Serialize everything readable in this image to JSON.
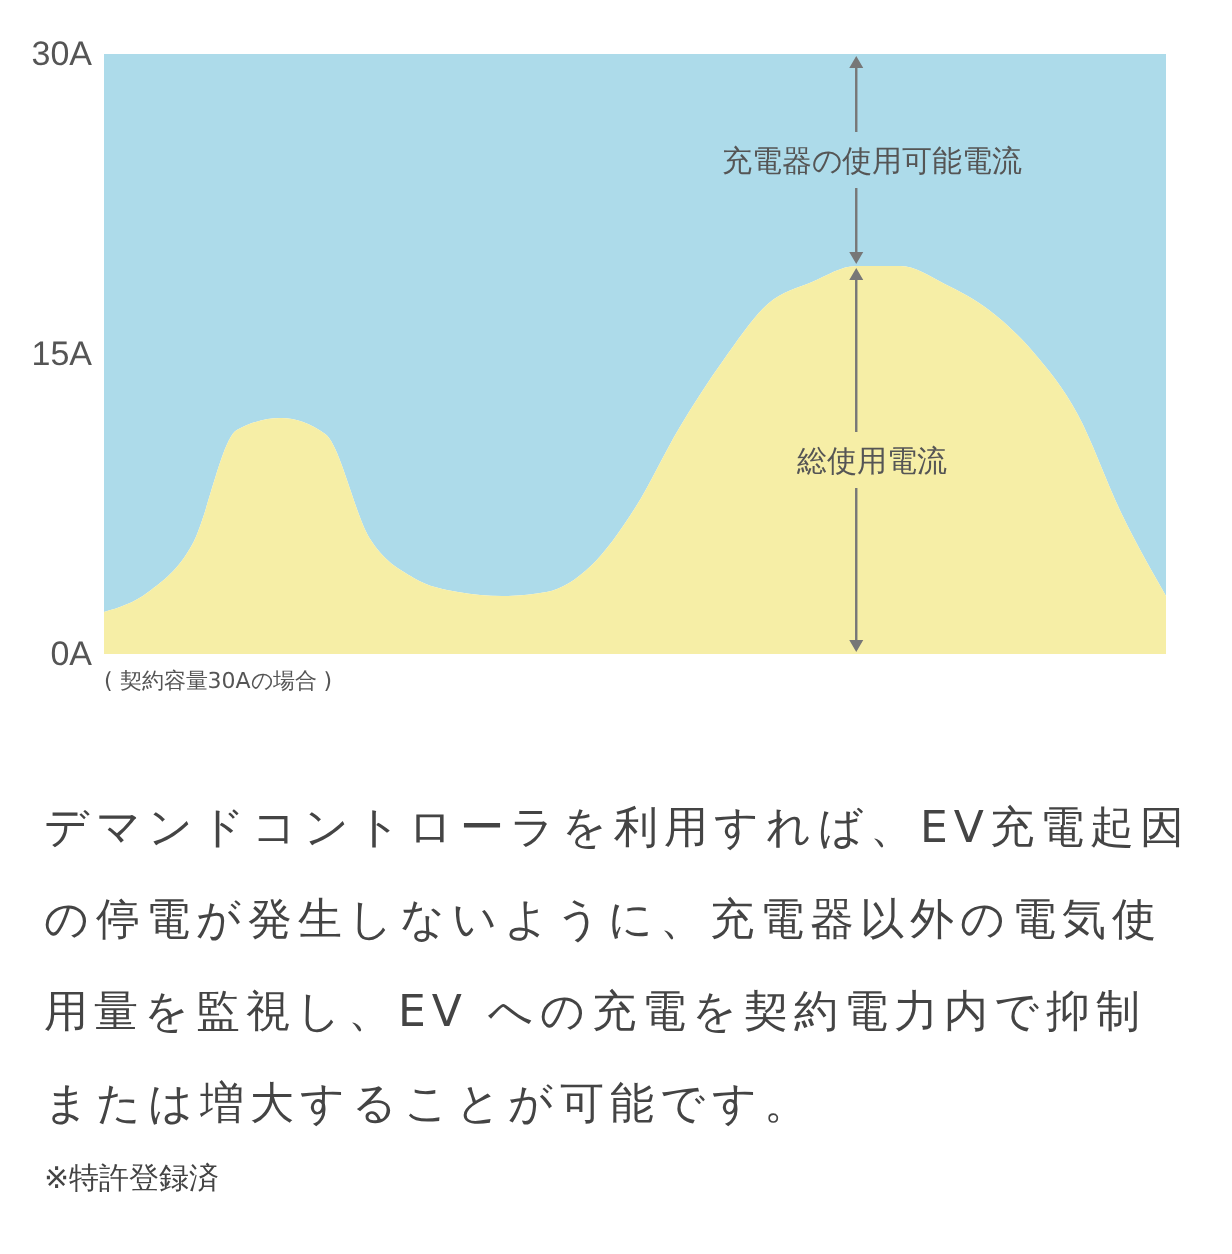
{
  "chart_data": {
    "type": "area",
    "stacked": true,
    "categories": [
      null,
      null,
      null,
      null,
      null,
      null,
      null,
      null,
      null,
      null,
      null,
      null,
      null,
      null,
      null,
      null,
      null,
      null,
      null,
      null,
      null,
      null,
      null,
      null,
      null
    ],
    "series": [
      {
        "name": "総使用電流",
        "color": "#f6eea6",
        "values": [
          2.1,
          3.1,
          5.5,
          11.2,
          11.8,
          11,
          5.8,
          3.8,
          3.1,
          2.9,
          3.1,
          4.4,
          7.3,
          11.3,
          14.7,
          17.5,
          18.6,
          19.4,
          19.4,
          18.5,
          17.2,
          15.1,
          12,
          7,
          2.9
        ]
      },
      {
        "name": "充電器の使用可能電流",
        "color": "#addbea",
        "values": [
          27.9,
          26.9,
          24.5,
          18.8,
          18.2,
          19,
          24.2,
          26.2,
          26.9,
          27.1,
          26.9,
          25.6,
          22.7,
          18.7,
          15.3,
          12.5,
          11.4,
          10.6,
          10.6,
          11.5,
          12.8,
          14.9,
          18,
          23,
          27.1
        ]
      }
    ],
    "ylim": [
      0,
      30
    ],
    "yticks": [
      {
        "value": 0,
        "label": "0A"
      },
      {
        "value": 15,
        "label": "15A"
      },
      {
        "value": 30,
        "label": "30A"
      }
    ],
    "tick_labels": "y",
    "legend": false,
    "grid": false,
    "annotations": [
      "( 契約容量30Aの場合 )",
      "デマンドコントローラを利用すれば、EV充電起因の停電が発生しないように、充電器以外の電気使用量を監視し、EV への充電を契約電力内で抑制または増大することが可能です。",
      "※特許登録済"
    ]
  }
}
